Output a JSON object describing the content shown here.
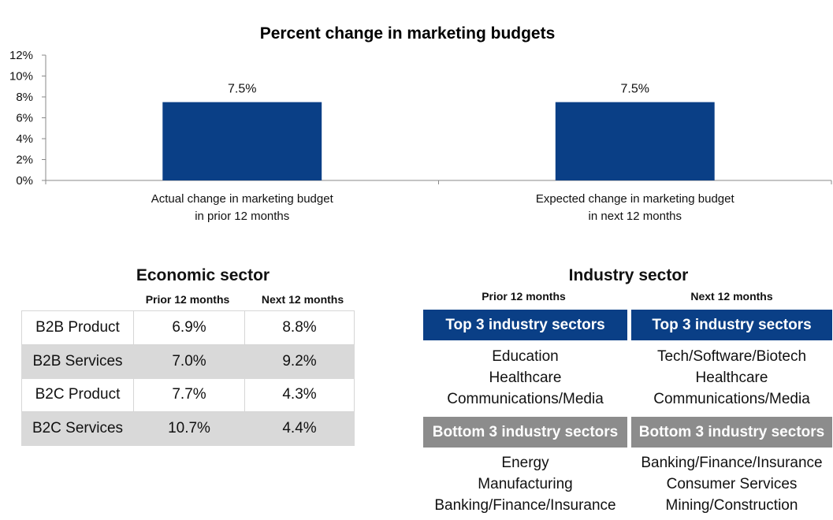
{
  "chart_data": {
    "type": "bar",
    "title": "Percent change in marketing budgets",
    "categories": [
      [
        "Actual change in marketing budget",
        "in prior 12 months"
      ],
      [
        "Expected change in marketing budget",
        "in next 12 months"
      ]
    ],
    "values": [
      7.5,
      7.5
    ],
    "value_labels": [
      "7.5%",
      "7.5%"
    ],
    "ylim": [
      0,
      12
    ],
    "yticks": [
      0,
      2,
      4,
      6,
      8,
      10,
      12
    ],
    "ytick_labels": [
      "0%",
      "2%",
      "4%",
      "6%",
      "8%",
      "10%",
      "12%"
    ],
    "grid": false,
    "bar_color": "#0a3f86"
  },
  "economic_sector": {
    "title": "Economic sector",
    "columns": [
      "Prior 12 months",
      "Next 12 months"
    ],
    "rows": [
      {
        "label": "B2B Product",
        "prior": "6.9%",
        "next": "8.8%"
      },
      {
        "label": "B2B Services",
        "prior": "7.0%",
        "next": "9.2%"
      },
      {
        "label": "B2C Product",
        "prior": "7.7%",
        "next": "4.3%"
      },
      {
        "label": "B2C Services",
        "prior": "10.7%",
        "next": "4.4%"
      }
    ]
  },
  "industry_sector": {
    "title": "Industry sector",
    "columns": [
      "Prior 12 months",
      "Next 12 months"
    ],
    "top_label": "Top 3 industry sectors",
    "bottom_label": "Bottom 3 industry sectors",
    "prior": {
      "top": [
        "Education",
        "Healthcare",
        "Communications/Media"
      ],
      "bottom": [
        "Energy",
        "Manufacturing",
        "Banking/Finance/Insurance"
      ]
    },
    "next": {
      "top": [
        "Tech/Software/Biotech",
        "Healthcare",
        "Communications/Media"
      ],
      "bottom": [
        "Banking/Finance/Insurance",
        "Consumer Services",
        "Mining/Construction"
      ]
    },
    "colors": {
      "top_band": "#0a3f86",
      "bottom_band": "#8c8c8c"
    }
  }
}
